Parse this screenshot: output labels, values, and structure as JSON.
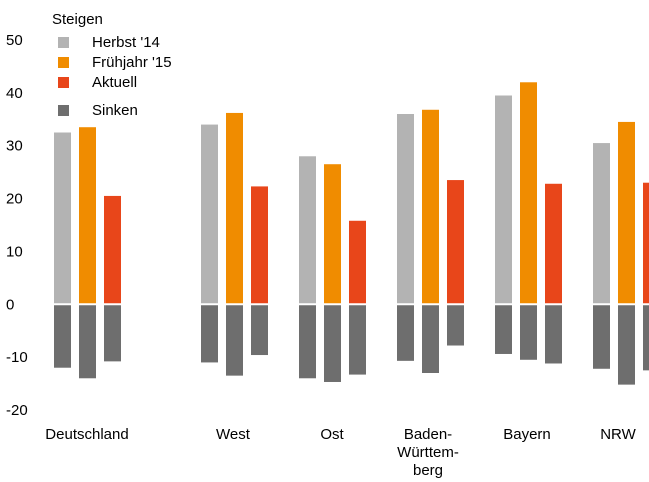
{
  "chart_data": {
    "type": "bar",
    "categories": [
      [
        "Deutschland"
      ],
      [
        "West"
      ],
      [
        "Ost"
      ],
      [
        "Baden-",
        "Württem-",
        "berg"
      ],
      [
        "Bayern"
      ],
      [
        "NRW"
      ]
    ],
    "series": [
      {
        "name": "Herbst '14",
        "color": "#b3b3b3",
        "values": [
          32.5,
          34,
          28,
          36,
          39.5,
          30.5
        ]
      },
      {
        "name": "Frühjahr '15",
        "color": "#f08c00",
        "values": [
          33.5,
          36.2,
          26.5,
          36.8,
          42,
          34.5
        ]
      },
      {
        "name": "Aktuell",
        "color": "#e8461a",
        "values": [
          20.5,
          22.3,
          15.8,
          23.5,
          22.8,
          23
        ]
      },
      {
        "name": "Sinken",
        "color": "#6e6e6e",
        "values": [
          [
            -12,
            -14,
            -10.8
          ],
          [
            -11,
            -13.5,
            -9.6
          ],
          [
            -14,
            -14.7,
            -13.3
          ],
          [
            -10.7,
            -13,
            -7.8
          ],
          [
            -9.4,
            -10.5,
            -11.2
          ],
          [
            -12.2,
            -15.2,
            -12.5
          ]
        ]
      }
    ],
    "legend": {
      "title": "Steigen",
      "placement": "top-left"
    },
    "ylim": [
      -20,
      50
    ],
    "yticks": [
      "50",
      "40",
      "30",
      "20",
      "10",
      "0",
      "-10",
      "-20"
    ],
    "xlabel": "",
    "ylabel": "",
    "grid": false
  }
}
